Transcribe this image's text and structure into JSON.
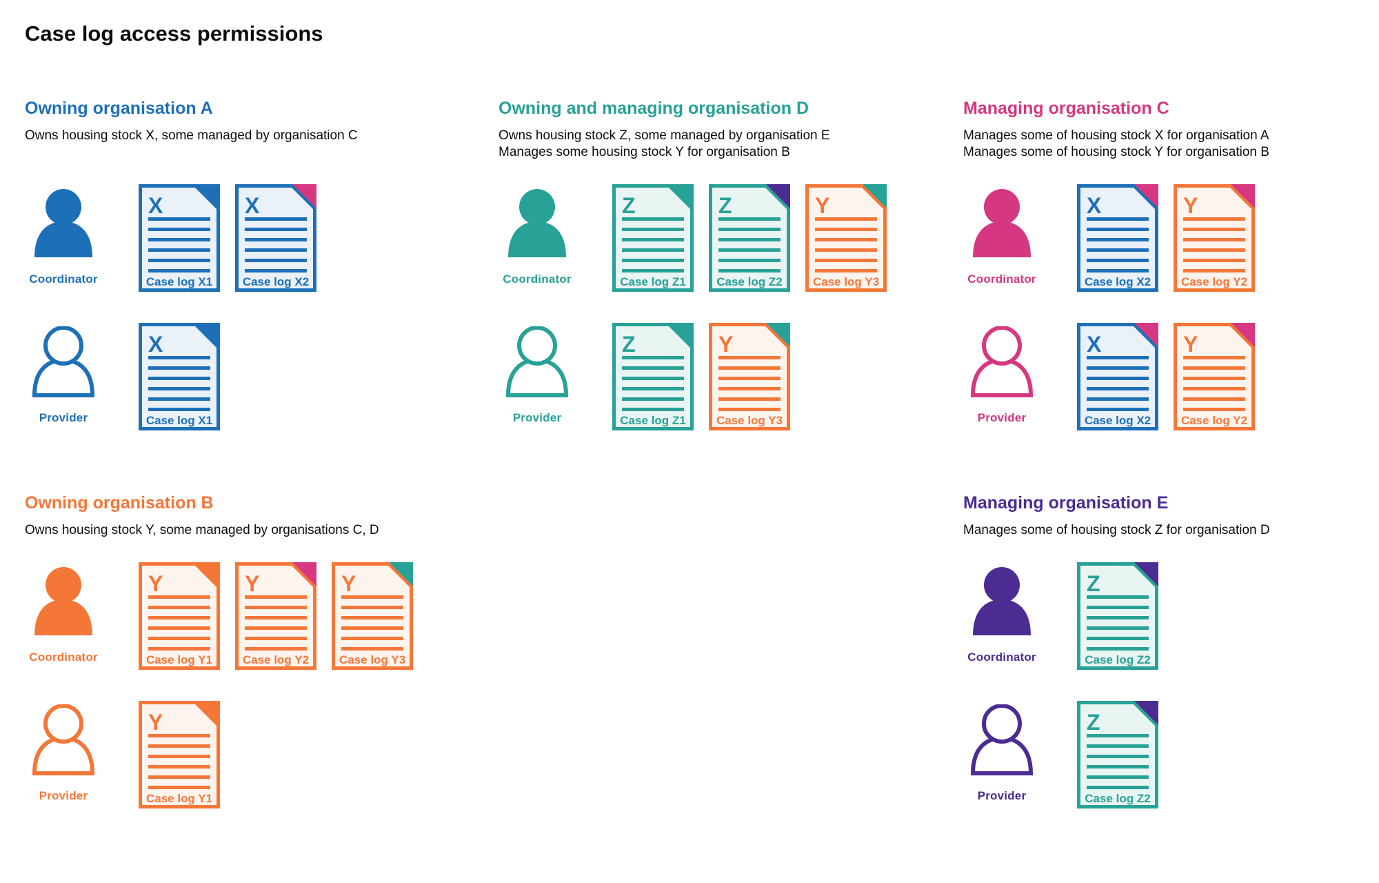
{
  "title": "Case log access permissions",
  "palette": {
    "blue": {
      "main": "#1d70b8",
      "tint": "#eaf1f8"
    },
    "teal": {
      "main": "#28a197",
      "tint": "#e9f5f3"
    },
    "orange": {
      "main": "#f47738",
      "tint": "#fdf4ee"
    },
    "pink": {
      "main": "#d53880"
    },
    "purple": {
      "main": "#4c2c92"
    }
  },
  "text_color": "#0b0c0c",
  "sections": [
    {
      "heading": "Owning organisation A",
      "color": "blue",
      "description_lines": [
        "Owns housing stock X, some managed by organisation C"
      ],
      "rows": [
        {
          "role": "Coordinator",
          "person_style": "filled",
          "docs": [
            {
              "label": "Case log X1",
              "letter": "X",
              "stock": "blue",
              "fold": "blue"
            },
            {
              "label": "Case log X2",
              "letter": "X",
              "stock": "blue",
              "fold": "pink"
            }
          ]
        },
        {
          "role": "Provider",
          "person_style": "outline",
          "docs": [
            {
              "label": "Case log X1",
              "letter": "X",
              "stock": "blue",
              "fold": "blue"
            }
          ]
        }
      ]
    },
    {
      "heading": "Owning and managing organisation D",
      "color": "teal",
      "description_lines": [
        "Owns housing stock Z, some managed by organisation E",
        "Manages some housing stock Y for organisation B"
      ],
      "rows": [
        {
          "role": "Coordinator",
          "person_style": "filled",
          "docs": [
            {
              "label": "Case log Z1",
              "letter": "Z",
              "stock": "teal",
              "fold": "teal"
            },
            {
              "label": "Case log Z2",
              "letter": "Z",
              "stock": "teal",
              "fold": "purple"
            },
            {
              "label": "Case log Y3",
              "letter": "Y",
              "stock": "orange",
              "fold": "teal"
            }
          ]
        },
        {
          "role": "Provider",
          "person_style": "outline",
          "docs": [
            {
              "label": "Case log Z1",
              "letter": "Z",
              "stock": "teal",
              "fold": "teal"
            },
            {
              "label": "Case log Y3",
              "letter": "Y",
              "stock": "orange",
              "fold": "teal"
            }
          ]
        }
      ]
    },
    {
      "heading": "Managing organisation C",
      "color": "pink",
      "description_lines": [
        "Manages some of housing stock X for organisation A",
        "Manages some of housing stock Y for organisation B"
      ],
      "rows": [
        {
          "role": "Coordinator",
          "person_style": "filled",
          "docs": [
            {
              "label": "Case log X2",
              "letter": "X",
              "stock": "blue",
              "fold": "pink"
            },
            {
              "label": "Case log Y2",
              "letter": "Y",
              "stock": "orange",
              "fold": "pink"
            }
          ]
        },
        {
          "role": "Provider",
          "person_style": "outline",
          "docs": [
            {
              "label": "Case log X2",
              "letter": "X",
              "stock": "blue",
              "fold": "pink"
            },
            {
              "label": "Case log Y2",
              "letter": "Y",
              "stock": "orange",
              "fold": "pink"
            }
          ]
        }
      ]
    },
    {
      "heading": "Owning organisation B",
      "color": "orange",
      "description_lines": [
        "Owns housing stock Y, some managed by organisations C, D"
      ],
      "rows": [
        {
          "role": "Coordinator",
          "person_style": "filled",
          "docs": [
            {
              "label": "Case log Y1",
              "letter": "Y",
              "stock": "orange",
              "fold": "orange"
            },
            {
              "label": "Case log Y2",
              "letter": "Y",
              "stock": "orange",
              "fold": "pink"
            },
            {
              "label": "Case log Y3",
              "letter": "Y",
              "stock": "orange",
              "fold": "teal"
            }
          ]
        },
        {
          "role": "Provider",
          "person_style": "outline",
          "docs": [
            {
              "label": "Case log Y1",
              "letter": "Y",
              "stock": "orange",
              "fold": "orange"
            }
          ]
        }
      ]
    },
    {
      "heading": "Managing organisation E",
      "color": "purple",
      "description_lines": [
        "Manages some of housing stock Z for organisation D"
      ],
      "rows": [
        {
          "role": "Coordinator",
          "person_style": "filled",
          "docs": [
            {
              "label": "Case log Z2",
              "letter": "Z",
              "stock": "teal",
              "fold": "purple"
            }
          ]
        },
        {
          "role": "Provider",
          "person_style": "outline",
          "docs": [
            {
              "label": "Case log Z2",
              "letter": "Z",
              "stock": "teal",
              "fold": "purple"
            }
          ]
        }
      ]
    }
  ]
}
